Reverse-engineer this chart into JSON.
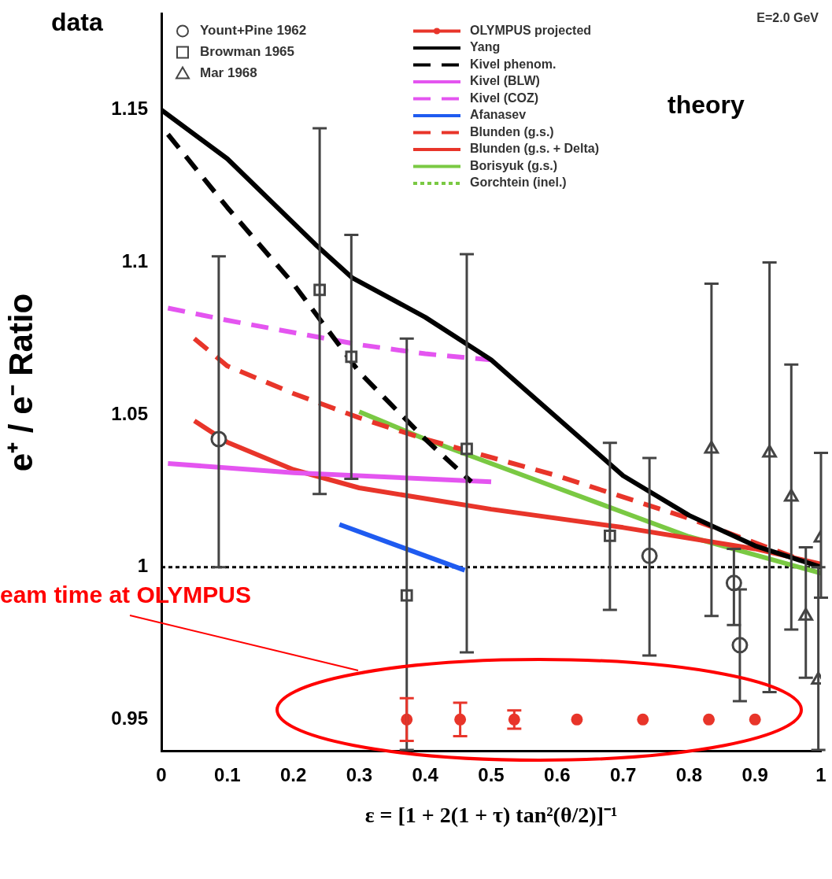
{
  "chart_data": {
    "type": "line",
    "xlabel": "ε = [1 + 2(1 + τ) tan²(θ/2)]⁻¹",
    "ylabel": "e⁺ / e⁻ Ratio",
    "xlim": [
      0,
      1
    ],
    "xticks": [
      0,
      0.1,
      0.2,
      0.3,
      0.4,
      0.5,
      0.6,
      0.7,
      0.8,
      0.9,
      1
    ],
    "ylim": [
      0.9396,
      1.1816
    ],
    "yticks": [
      0.95,
      1,
      1.05,
      1.1,
      1.15
    ],
    "grid": false,
    "legend": "top",
    "annotations": [
      "data",
      "theory",
      "E=2.0 GeV",
      "eam time at OLYMPUS"
    ],
    "ref_lines": [
      {
        "axis": "y",
        "value": 1,
        "color": "#000000",
        "line_style": "dotted"
      }
    ],
    "series": [
      {
        "name": "Yount+Pine 1962",
        "type": "scatter",
        "marker": "circle",
        "color": "#444444",
        "x": [
          0.087,
          0.74,
          0.868,
          0.877
        ],
        "values": [
          1.042,
          1.0037,
          0.9948,
          0.9744
        ],
        "errors": [
          [
            1.0,
            1.102
          ],
          [
            0.971,
            1.0358
          ],
          [
            0.981,
            1.006
          ],
          [
            0.956,
            0.9927
          ]
        ]
      },
      {
        "name": "Browman 1965",
        "type": "scatter",
        "marker": "square",
        "color": "#444444",
        "x": [
          0.24,
          0.288,
          0.372,
          0.463,
          0.68
        ],
        "values": [
          1.091,
          1.069,
          0.9907,
          1.0388,
          1.0103
        ],
        "errors": [
          [
            1.024,
            1.144
          ],
          [
            1.029,
            1.109
          ],
          [
            0.94,
            1.075
          ],
          [
            0.972,
            1.1027
          ],
          [
            0.986,
            1.0408
          ]
        ]
      },
      {
        "name": "Mar 1968",
        "type": "scatter",
        "marker": "triangle",
        "color": "#444444",
        "x": [
          0.834,
          0.922,
          0.955,
          0.977,
          0.996,
          1.0
        ],
        "values": [
          1.0388,
          1.0375,
          1.023,
          0.984,
          0.963,
          1.0096
        ],
        "errors": [
          [
            0.984,
            1.093
          ],
          [
            0.959,
            1.1
          ],
          [
            0.9795,
            1.0665
          ],
          [
            0.9637,
            1.0065
          ],
          [
            0.94,
            1.0
          ],
          [
            0.99,
            1.0375
          ]
        ]
      },
      {
        "name": "OLYMPUS projected",
        "type": "scatter",
        "marker": "circle",
        "color": "#e8352a",
        "x": [
          0.372,
          0.453,
          0.535,
          0.63,
          0.73,
          0.83,
          0.9
        ],
        "values": [
          0.95,
          0.95,
          0.95,
          0.95,
          0.95,
          0.95,
          0.95
        ],
        "errors": [
          0.007,
          0.0055,
          0.003,
          null,
          null,
          null,
          null
        ]
      },
      {
        "name": "Yang",
        "type": "line",
        "line_style": "solid",
        "color": "#000000",
        "x": [
          0.0,
          0.1,
          0.233,
          0.289,
          0.4,
          0.5,
          0.7,
          0.8,
          0.9,
          1.0
        ],
        "values": [
          1.15,
          1.134,
          1.106,
          1.095,
          1.082,
          1.068,
          1.03,
          1.017,
          1.007,
          1.0
        ]
      },
      {
        "name": "Kivel phenom.",
        "type": "line",
        "line_style": "dashed",
        "color": "#000000",
        "x": [
          0.01,
          0.1,
          0.2,
          0.3,
          0.4,
          0.47
        ],
        "values": [
          1.142,
          1.118,
          1.093,
          1.064,
          1.042,
          1.028
        ]
      },
      {
        "name": "Kivel (BLW)",
        "type": "line",
        "line_style": "solid",
        "color": "#e455f0",
        "x": [
          0.01,
          0.2,
          0.5
        ],
        "values": [
          1.034,
          1.031,
          1.028
        ]
      },
      {
        "name": "Kivel (COZ)",
        "type": "line",
        "line_style": "dashed",
        "color": "#e455f0",
        "x": [
          0.01,
          0.1,
          0.2,
          0.3,
          0.4,
          0.5
        ],
        "values": [
          1.085,
          1.081,
          1.077,
          1.073,
          1.07,
          1.068
        ]
      },
      {
        "name": "Afanasev",
        "type": "line",
        "line_style": "solid",
        "color": "#1f5bf0",
        "x": [
          0.27,
          0.46
        ],
        "values": [
          1.014,
          0.999
        ]
      },
      {
        "name": "Blunden (g.s.)",
        "type": "line",
        "line_style": "dashed",
        "color": "#e8352a",
        "x": [
          0.05,
          0.1,
          0.2,
          0.3,
          0.4,
          0.6,
          0.8,
          1.0
        ],
        "values": [
          1.075,
          1.066,
          1.057,
          1.049,
          1.042,
          1.03,
          1.016,
          1.0
        ]
      },
      {
        "name": "Blunden (g.s. + Delta)",
        "type": "line",
        "line_style": "solid",
        "color": "#e8352a",
        "x": [
          0.05,
          0.1,
          0.2,
          0.3,
          0.5,
          0.7,
          0.9,
          1.0
        ],
        "values": [
          1.048,
          1.041,
          1.032,
          1.026,
          1.019,
          1.013,
          1.006,
          1.001
        ]
      },
      {
        "name": "Borisyuk (g.s.)",
        "type": "line",
        "line_style": "solid",
        "color": "#7ac943",
        "x": [
          0.3,
          0.4,
          0.5,
          0.6,
          0.7,
          0.8,
          0.9,
          1.0
        ],
        "values": [
          1.051,
          1.042,
          1.034,
          1.026,
          1.018,
          1.01,
          1.004,
          0.998
        ]
      },
      {
        "name": "Gorchtein (inel.)",
        "type": "line",
        "line_style": "dotted",
        "color": "#7ac943"
      }
    ]
  }
}
